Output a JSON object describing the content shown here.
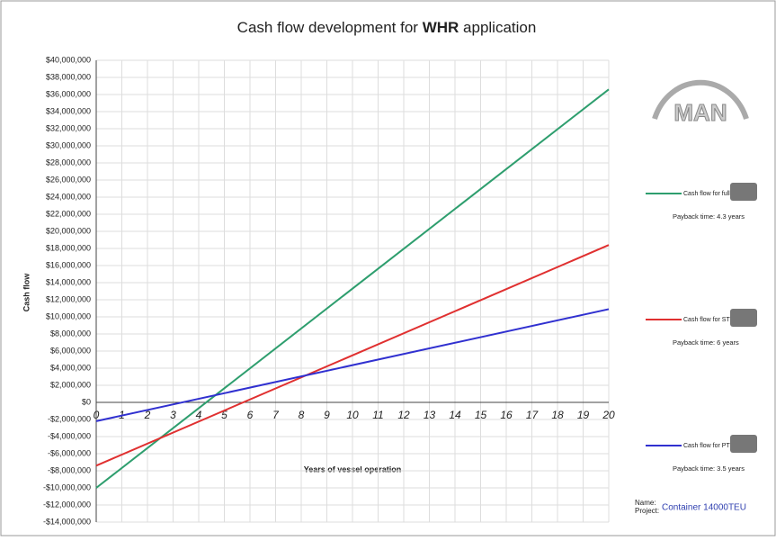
{
  "chart_data": {
    "type": "line",
    "title": [
      "Cash flow development for",
      "WHR",
      "application"
    ],
    "x_label": "Years of vessel operation",
    "y_label": "Cash flow",
    "x": [
      0,
      20
    ],
    "series": [
      {
        "name": "Cash flow for full WHRS",
        "color": "#2e9e6e",
        "values": [
          -10000000,
          36600000
        ],
        "note": "Payback time: 4.3 years"
      },
      {
        "name": "Cash flow for STG WHRS",
        "color": "#e03030",
        "values": [
          -7400000,
          18400000
        ],
        "note": "Payback time: 6 years"
      },
      {
        "name": "Cash flow for PTG WHRS",
        "color": "#3030d0",
        "values": [
          -2200000,
          10900000
        ],
        "note": "Payback time: 3.5 years"
      }
    ],
    "xlim": [
      0,
      20
    ],
    "xticks": [
      0,
      1,
      2,
      3,
      4,
      5,
      6,
      7,
      8,
      9,
      10,
      11,
      12,
      13,
      14,
      15,
      16,
      17,
      18,
      19,
      20
    ],
    "ylim": [
      -14000000,
      40000000
    ],
    "yticks": [
      {
        "value": -14000000,
        "label": "-$14,000,000"
      },
      {
        "value": -12000000,
        "label": "-$12,000,000"
      },
      {
        "value": -10000000,
        "label": "-$10,000,000"
      },
      {
        "value": -8000000,
        "label": "-$8,000,000"
      },
      {
        "value": -6000000,
        "label": "-$6,000,000"
      },
      {
        "value": -4000000,
        "label": "-$4,000,000"
      },
      {
        "value": -2000000,
        "label": "-$2,000,000"
      },
      {
        "value": 0,
        "label": "$0"
      },
      {
        "value": 2000000,
        "label": "$2,000,000"
      },
      {
        "value": 4000000,
        "label": "$4,000,000"
      },
      {
        "value": 6000000,
        "label": "$6,000,000"
      },
      {
        "value": 8000000,
        "label": "$8,000,000"
      },
      {
        "value": 10000000,
        "label": "$10,000,000"
      },
      {
        "value": 12000000,
        "label": "$12,000,000"
      },
      {
        "value": 14000000,
        "label": "$14,000,000"
      },
      {
        "value": 16000000,
        "label": "$16,000,000"
      },
      {
        "value": 18000000,
        "label": "$18,000,000"
      },
      {
        "value": 20000000,
        "label": "$20,000,000"
      },
      {
        "value": 22000000,
        "label": "$22,000,000"
      },
      {
        "value": 24000000,
        "label": "$24,000,000"
      },
      {
        "value": 26000000,
        "label": "$26,000,000"
      },
      {
        "value": 28000000,
        "label": "$28,000,000"
      },
      {
        "value": 30000000,
        "label": "$30,000,000"
      },
      {
        "value": 32000000,
        "label": "$32,000,000"
      },
      {
        "value": 34000000,
        "label": "$34,000,000"
      },
      {
        "value": 36000000,
        "label": "$36,000,000"
      },
      {
        "value": 38000000,
        "label": "$38,000,000"
      },
      {
        "value": 40000000,
        "label": "$40,000,000"
      }
    ],
    "grid": true,
    "logo": "MAN",
    "footer": {
      "name_label": "Name:",
      "project_label": "Project:",
      "project": "Container 14000TEU"
    }
  }
}
